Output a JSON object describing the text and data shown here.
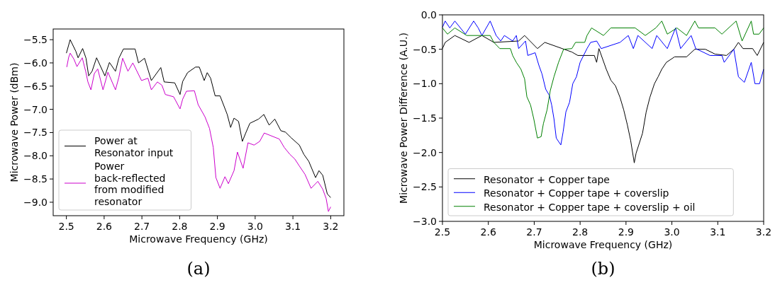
{
  "chart_data": [
    {
      "type": "line",
      "xlabel": "Microwave Frequency (GHz)",
      "ylabel": "Microwave Power (dBm)",
      "annotations": [
        "(a)"
      ],
      "legend": "bottom left",
      "xlim": [
        2.465,
        3.235
      ],
      "ylim": [
        -9.29,
        -5.27
      ],
      "xticks": [
        {
          "value": 2.5,
          "label": "2.5"
        },
        {
          "value": 2.6,
          "label": "2.6"
        },
        {
          "value": 2.7,
          "label": "2.7"
        },
        {
          "value": 2.8,
          "label": "2.8"
        },
        {
          "value": 2.9,
          "label": "2.9"
        },
        {
          "value": 3.0,
          "label": "3.0"
        },
        {
          "value": 3.1,
          "label": "3.1"
        },
        {
          "value": 3.2,
          "label": "3.2"
        }
      ],
      "yticks": [
        {
          "value": -5.5,
          "label": "−5.5"
        },
        {
          "value": -6.0,
          "label": "−6.0"
        },
        {
          "value": -6.5,
          "label": "−6.5"
        },
        {
          "value": -7.0,
          "label": "−7.0"
        },
        {
          "value": -7.5,
          "label": "−7.5"
        },
        {
          "value": -8.0,
          "label": "−8.0"
        },
        {
          "value": -8.5,
          "label": "−8.5"
        },
        {
          "value": -9.0,
          "label": "−9.0"
        }
      ],
      "series": [
        {
          "name": "Power at Resonator input",
          "color": "#000000",
          "x": [
            2.5,
            2.51,
            2.525,
            2.531,
            2.543,
            2.552,
            2.559,
            2.568,
            2.58,
            2.602,
            2.614,
            2.63,
            2.639,
            2.651,
            2.682,
            2.691,
            2.707,
            2.725,
            2.75,
            2.759,
            2.787,
            2.801,
            2.808,
            2.821,
            2.842,
            2.852,
            2.865,
            2.873,
            2.882,
            2.894,
            2.907,
            2.926,
            2.935,
            2.944,
            2.956,
            2.966,
            2.975,
            2.986,
            3.009,
            3.023,
            3.037,
            3.052,
            3.068,
            3.08,
            3.095,
            3.117,
            3.129,
            3.142,
            3.16,
            3.169,
            3.179,
            3.191,
            3.2
          ],
          "values": [
            -5.79,
            -5.5,
            -5.75,
            -5.89,
            -5.69,
            -5.9,
            -6.28,
            -6.18,
            -5.89,
            -6.28,
            -5.99,
            -6.18,
            -5.9,
            -5.7,
            -5.7,
            -6.0,
            -5.9,
            -6.38,
            -6.1,
            -6.41,
            -6.43,
            -6.68,
            -6.4,
            -6.21,
            -6.09,
            -6.09,
            -6.38,
            -6.21,
            -6.33,
            -6.71,
            -6.71,
            -7.11,
            -7.39,
            -7.19,
            -7.26,
            -7.69,
            -7.51,
            -7.3,
            -7.21,
            -7.11,
            -7.34,
            -7.21,
            -7.46,
            -7.49,
            -7.61,
            -7.77,
            -7.97,
            -8.12,
            -8.47,
            -8.32,
            -8.42,
            -8.82,
            -8.9
          ]
        },
        {
          "name": "Power back-reflected from modified resonator",
          "color": "#cc00cc",
          "x": [
            2.501,
            2.506,
            2.51,
            2.52,
            2.528,
            2.542,
            2.551,
            2.557,
            2.565,
            2.574,
            2.583,
            2.597,
            2.61,
            2.63,
            2.639,
            2.649,
            2.663,
            2.676,
            2.699,
            2.716,
            2.725,
            2.741,
            2.753,
            2.762,
            2.784,
            2.801,
            2.808,
            2.818,
            2.839,
            2.849,
            2.867,
            2.879,
            2.889,
            2.896,
            2.907,
            2.92,
            2.929,
            2.944,
            2.953,
            2.968,
            2.981,
            2.997,
            3.012,
            3.024,
            3.064,
            3.077,
            3.092,
            3.105,
            3.117,
            3.132,
            3.148,
            3.166,
            3.179,
            3.188,
            3.194,
            3.2
          ],
          "values": [
            -6.09,
            -5.88,
            -5.79,
            -5.92,
            -6.08,
            -5.89,
            -6.18,
            -6.41,
            -6.58,
            -6.23,
            -6.13,
            -6.58,
            -6.2,
            -6.58,
            -6.31,
            -5.9,
            -6.18,
            -6.0,
            -6.38,
            -6.33,
            -6.58,
            -6.41,
            -6.48,
            -6.68,
            -6.73,
            -6.99,
            -6.78,
            -6.61,
            -6.6,
            -6.9,
            -7.16,
            -7.41,
            -7.82,
            -8.47,
            -8.7,
            -8.45,
            -8.6,
            -8.32,
            -7.92,
            -8.27,
            -7.72,
            -7.77,
            -7.69,
            -7.51,
            -7.64,
            -7.82,
            -7.97,
            -8.07,
            -8.22,
            -8.4,
            -8.7,
            -8.55,
            -8.72,
            -8.92,
            -9.2,
            -9.1
          ]
        }
      ]
    },
    {
      "type": "line",
      "xlabel": "Microwave Frequency (GHz)",
      "ylabel": "Microwave Power Difference (A.U.)",
      "annotations": [
        "(b)"
      ],
      "legend": "bottom left",
      "xlim": [
        2.5,
        3.2
      ],
      "ylim": [
        -3,
        0
      ],
      "xticks": [
        {
          "value": 2.5,
          "label": "2.5"
        },
        {
          "value": 2.6,
          "label": "2.6"
        },
        {
          "value": 2.7,
          "label": "2.7"
        },
        {
          "value": 2.8,
          "label": "2.8"
        },
        {
          "value": 2.9,
          "label": "2.9"
        },
        {
          "value": 3.0,
          "label": "3.0"
        },
        {
          "value": 3.1,
          "label": "3.1"
        },
        {
          "value": 3.2,
          "label": "3.2"
        }
      ],
      "yticks": [
        {
          "value": -3,
          "label": "−3.0"
        },
        {
          "value": -2.5,
          "label": "−2.5"
        },
        {
          "value": -2,
          "label": "−2.0"
        },
        {
          "value": -1.5,
          "label": "−1.5"
        },
        {
          "value": -1,
          "label": "−1.0"
        },
        {
          "value": -0.5,
          "label": "−0.5"
        },
        {
          "value": 0,
          "label": "0.0"
        }
      ],
      "series": [
        {
          "name": "Resonator + Copper tape",
          "color": "#000000",
          "x": [
            2.5,
            2.506,
            2.527,
            2.558,
            2.586,
            2.612,
            2.666,
            2.679,
            2.707,
            2.723,
            2.761,
            2.782,
            2.795,
            2.831,
            2.836,
            2.841,
            2.857,
            2.867,
            2.877,
            2.887,
            2.895,
            2.903,
            2.91,
            2.918,
            2.922,
            2.936,
            2.944,
            2.952,
            2.962,
            2.97,
            2.978,
            2.988,
            3.006,
            3.032,
            3.05,
            3.073,
            3.094,
            3.119,
            3.135,
            3.145,
            3.155,
            3.176,
            3.186,
            3.2
          ],
          "values": [
            -0.49,
            -0.4,
            -0.3,
            -0.4,
            -0.3,
            -0.4,
            -0.38,
            -0.3,
            -0.49,
            -0.4,
            -0.49,
            -0.54,
            -0.59,
            -0.59,
            -0.69,
            -0.49,
            -0.79,
            -0.95,
            -1.03,
            -1.2,
            -1.38,
            -1.6,
            -1.82,
            -2.15,
            -2.01,
            -1.72,
            -1.41,
            -1.2,
            -1.0,
            -0.9,
            -0.79,
            -0.69,
            -0.61,
            -0.61,
            -0.5,
            -0.5,
            -0.57,
            -0.59,
            -0.5,
            -0.4,
            -0.49,
            -0.49,
            -0.59,
            -0.4
          ]
        },
        {
          "name": "Resonator + Copper tape + coverslip",
          "color": "#0000ff",
          "x": [
            2.5,
            2.506,
            2.516,
            2.527,
            2.55,
            2.568,
            2.578,
            2.586,
            2.604,
            2.617,
            2.627,
            2.635,
            2.653,
            2.661,
            2.666,
            2.681,
            2.686,
            2.702,
            2.71,
            2.717,
            2.725,
            2.733,
            2.738,
            2.743,
            2.748,
            2.758,
            2.763,
            2.769,
            2.777,
            2.784,
            2.792,
            2.8,
            2.815,
            2.823,
            2.836,
            2.846,
            2.887,
            2.905,
            2.916,
            2.926,
            2.957,
            2.967,
            2.99,
            3.008,
            3.019,
            3.042,
            3.052,
            3.083,
            3.109,
            3.114,
            3.135,
            3.145,
            3.158,
            3.173,
            3.181,
            3.191,
            3.2
          ],
          "values": [
            -0.18,
            -0.09,
            -0.19,
            -0.09,
            -0.28,
            -0.09,
            -0.19,
            -0.3,
            -0.09,
            -0.3,
            -0.38,
            -0.3,
            -0.38,
            -0.3,
            -0.49,
            -0.38,
            -0.59,
            -0.55,
            -0.73,
            -0.86,
            -1.08,
            -1.17,
            -1.31,
            -1.51,
            -1.79,
            -1.89,
            -1.7,
            -1.41,
            -1.27,
            -1.0,
            -0.9,
            -0.69,
            -0.49,
            -0.4,
            -0.38,
            -0.49,
            -0.4,
            -0.3,
            -0.49,
            -0.3,
            -0.49,
            -0.3,
            -0.49,
            -0.19,
            -0.49,
            -0.3,
            -0.49,
            -0.59,
            -0.59,
            -0.69,
            -0.5,
            -0.9,
            -0.98,
            -0.69,
            -1.0,
            -1.0,
            -0.79
          ]
        },
        {
          "name": "Resonator + Copper tape + coverslip + oil",
          "color": "#008000",
          "x": [
            2.5,
            2.511,
            2.527,
            2.553,
            2.604,
            2.612,
            2.625,
            2.648,
            2.653,
            2.661,
            2.671,
            2.679,
            2.684,
            2.692,
            2.699,
            2.707,
            2.715,
            2.72,
            2.728,
            2.735,
            2.743,
            2.753,
            2.764,
            2.782,
            2.79,
            2.81,
            2.815,
            2.825,
            2.851,
            2.867,
            2.92,
            2.942,
            2.965,
            2.978,
            2.99,
            3.011,
            3.032,
            3.05,
            3.058,
            3.094,
            3.109,
            3.14,
            3.153,
            3.173,
            3.178,
            3.19,
            3.2
          ],
          "values": [
            -0.19,
            -0.28,
            -0.19,
            -0.3,
            -0.3,
            -0.4,
            -0.49,
            -0.49,
            -0.59,
            -0.69,
            -0.79,
            -0.93,
            -1.19,
            -1.31,
            -1.51,
            -1.79,
            -1.77,
            -1.58,
            -1.38,
            -1.1,
            -0.9,
            -0.69,
            -0.5,
            -0.49,
            -0.4,
            -0.4,
            -0.3,
            -0.19,
            -0.3,
            -0.19,
            -0.19,
            -0.3,
            -0.19,
            -0.09,
            -0.28,
            -0.19,
            -0.3,
            -0.09,
            -0.19,
            -0.19,
            -0.28,
            -0.09,
            -0.38,
            -0.09,
            -0.28,
            -0.28,
            -0.19
          ]
        }
      ]
    }
  ]
}
